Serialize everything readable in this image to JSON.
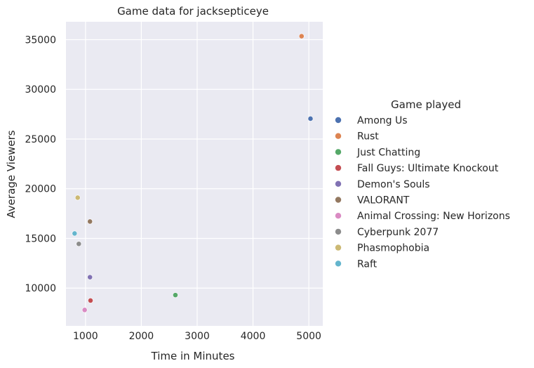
{
  "chart_data": {
    "type": "scatter",
    "title": "Game data for jacksepticeye",
    "xlabel": "Time in Minutes",
    "ylabel": "Average Viewers",
    "xlim": [
      650,
      5250
    ],
    "ylim": [
      6200,
      36800
    ],
    "xticks": [
      1000,
      2000,
      3000,
      4000,
      5000
    ],
    "yticks": [
      10000,
      15000,
      20000,
      25000,
      30000,
      35000
    ],
    "grid": true,
    "legend_title": "Game played",
    "legend_position": "right",
    "series": [
      {
        "name": "Among Us",
        "color": "#4c72b0",
        "x": 5030,
        "y": 27050
      },
      {
        "name": "Rust",
        "color": "#dd8452",
        "x": 4870,
        "y": 35350
      },
      {
        "name": "Just Chatting",
        "color": "#55a868",
        "x": 2610,
        "y": 9300
      },
      {
        "name": "Fall Guys: Ultimate Knockout",
        "color": "#c44e52",
        "x": 1090,
        "y": 8750
      },
      {
        "name": "Demon's Souls",
        "color": "#8172b3",
        "x": 1080,
        "y": 11100
      },
      {
        "name": "VALORANT",
        "color": "#937860",
        "x": 1080,
        "y": 16700
      },
      {
        "name": "Animal Crossing: New Horizons",
        "color": "#da8bc3",
        "x": 985,
        "y": 7800
      },
      {
        "name": "Cyberpunk 2077",
        "color": "#8c8c8c",
        "x": 880,
        "y": 14450
      },
      {
        "name": "Phasmophobia",
        "color": "#ccb974",
        "x": 860,
        "y": 19100
      },
      {
        "name": "Raft",
        "color": "#64b5cd",
        "x": 805,
        "y": 15500
      }
    ]
  }
}
